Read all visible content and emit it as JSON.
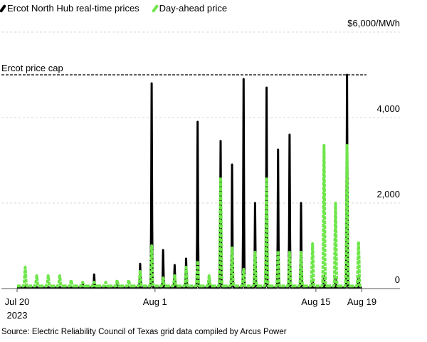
{
  "legend": [
    {
      "label": "Ercot North Hub real-time prices",
      "color": "#000000"
    },
    {
      "label": "Day-ahead price",
      "color": "#6ee64a"
    }
  ],
  "source": "Source: Electric Reliability Council of Texas grid data compiled by Arcus Power",
  "chart_data": {
    "type": "line",
    "unit_label": "$6,000/MWh",
    "y_ticks": [
      {
        "value": 6000,
        "label": "$6,000/MWh"
      },
      {
        "value": 4000,
        "label": "4,000"
      },
      {
        "value": 2000,
        "label": "2,000"
      },
      {
        "value": 0,
        "label": "0"
      }
    ],
    "ylim": [
      0,
      6000
    ],
    "grid": true,
    "x_ticks": [
      {
        "day": 0,
        "label": "Jul 20",
        "sublabel": "2023"
      },
      {
        "day": 12,
        "label": "Aug 1"
      },
      {
        "day": 26,
        "label": "Aug 15"
      },
      {
        "day": 30,
        "label": "Aug 19"
      }
    ],
    "x_start": "2023-07-20",
    "annotation": {
      "label": "Ercot price cap",
      "value": 5000
    },
    "legend_position": "top-left",
    "series": [
      {
        "name": "Ercot North Hub real-time prices",
        "color": "#000000",
        "style": "solid",
        "daily_peak": [
          50,
          30,
          30,
          30,
          30,
          100,
          330,
          30,
          100,
          50,
          580,
          4800,
          900,
          550,
          700,
          3900,
          200,
          3450,
          2900,
          4900,
          2000,
          4700,
          3250,
          3600,
          2000,
          200,
          300,
          250,
          5000,
          300
        ]
      },
      {
        "name": "Day-ahead price",
        "color": "#6ee64a",
        "style": "dotted",
        "daily_peak": [
          500,
          300,
          300,
          300,
          200,
          150,
          150,
          150,
          200,
          200,
          400,
          1000,
          250,
          300,
          500,
          650,
          300,
          2600,
          950,
          450,
          850,
          2600,
          880,
          850,
          850,
          1050,
          3350,
          2000,
          3350,
          1100
        ]
      }
    ]
  }
}
